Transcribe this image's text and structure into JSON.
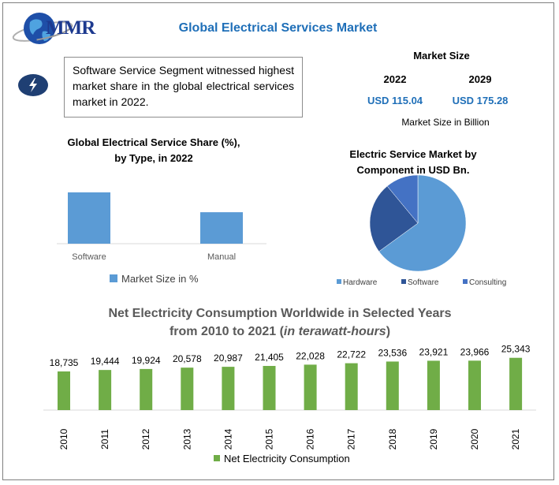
{
  "header": {
    "logo_text": "MMR",
    "title": "Global Electrical Services Market"
  },
  "info_box": {
    "text": "Software Service Segment witnessed highest market share in the global electrical services market in 2022."
  },
  "market_size": {
    "title": "Market Size",
    "year_a": "2022",
    "year_b": "2029",
    "value_a": "USD 115.04",
    "value_b": "USD 175.28",
    "note": "Market Size in Billion"
  },
  "colors": {
    "bar_blue": "#5b9bd5",
    "pie_hardware": "#5b9bd5",
    "pie_software": "#2f5597",
    "pie_consulting": "#4472c4",
    "bar_green": "#70ad47",
    "accent_blue": "#1f6fb8"
  },
  "chart_data": [
    {
      "type": "bar",
      "title": "Global Electrical Service Share (%), by Type, in 2022",
      "title_line1": "Global Electrical Service Share (%),",
      "title_line2": "by Type, in 2022",
      "categories": [
        "Software",
        "Manual"
      ],
      "values": [
        62,
        38
      ],
      "ylim": [
        0,
        100
      ],
      "legend": "Market Size in %",
      "legend_position": "bottom"
    },
    {
      "type": "pie",
      "title": "Electric Service Market by Component in USD Bn.",
      "title_line1": "Electric Service Market by",
      "title_line2": "Component in USD Bn.",
      "labels": [
        "Hardware",
        "Software",
        "Consulting"
      ],
      "values": [
        65,
        24,
        11
      ],
      "legend_position": "bottom"
    },
    {
      "type": "bar",
      "title": "Net Electricity Consumption Worldwide in Selected Years from 2010 to 2021 (in terawatt-hours)",
      "title_line1": "Net Electricity Consumption Worldwide in Selected Years",
      "title_line2": "from 2010 to 2021 (",
      "title_italic": "in terawatt-hours",
      "title_close": ")",
      "categories": [
        "2010",
        "2011",
        "2012",
        "2013",
        "2014",
        "2015",
        "2016",
        "2017",
        "2018",
        "2019",
        "2020",
        "2021"
      ],
      "values": [
        18735,
        19444,
        19924,
        20578,
        20987,
        21405,
        22028,
        22722,
        23536,
        23921,
        23966,
        25343
      ],
      "value_labels": [
        "18,735",
        "19,444",
        "19,924",
        "20,578",
        "20,987",
        "21,405",
        "22,028",
        "22,722",
        "23,536",
        "23,921",
        "23,966",
        "25,343"
      ],
      "ylim": [
        0,
        65000
      ],
      "legend": "Net Electricity Consumption",
      "legend_position": "bottom"
    }
  ]
}
